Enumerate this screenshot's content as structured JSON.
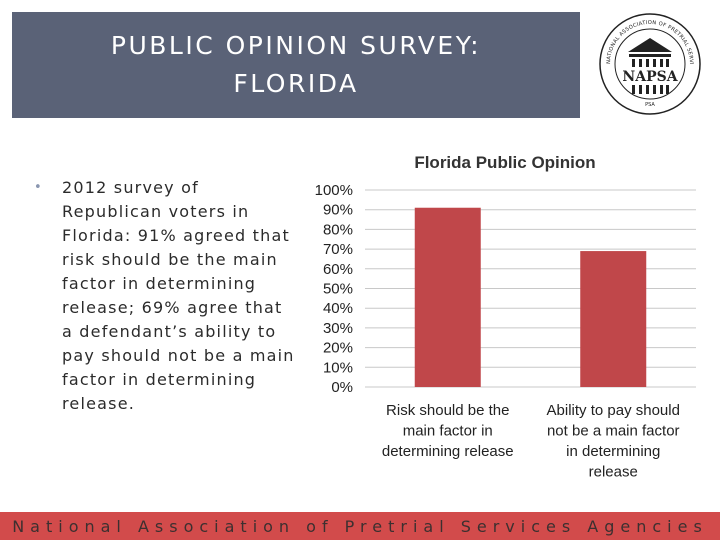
{
  "header": {
    "title_line1": "PUBLIC OPINION SURVEY:",
    "title_line2": "FLORIDA"
  },
  "logo": {
    "text": "NAPSA",
    "ring_text": "NATIONAL ASSOCIATION OF PRETRIAL SERVICES AGENCIES",
    "bottom_text": "PSA"
  },
  "bullet": {
    "text": "2012 survey of Republican voters in Florida:  91% agreed that risk should be the main factor in determining release; 69% agree that a defendant’s ability to pay should not be a main factor in determining release."
  },
  "footer": {
    "text": "National Association of Pretrial Services Agencies"
  },
  "colors": {
    "title_bg": "#5a6277",
    "bar": "#c0474a",
    "footer_bg": "#d24b4b"
  },
  "chart_data": {
    "type": "bar",
    "title": "Florida Public Opinion",
    "categories": [
      [
        "Risk should be the",
        "main factor in",
        "determining release"
      ],
      [
        "Ability to pay should",
        "not be a main factor",
        "in determining",
        "release"
      ]
    ],
    "values": [
      91,
      69
    ],
    "ylim": [
      0,
      100
    ],
    "yticks": [
      "0%",
      "10%",
      "20%",
      "30%",
      "40%",
      "50%",
      "60%",
      "70%",
      "80%",
      "90%",
      "100%"
    ],
    "xlabel": "",
    "ylabel": "",
    "grid": true
  }
}
